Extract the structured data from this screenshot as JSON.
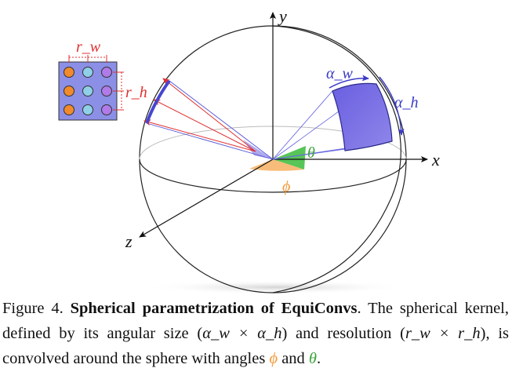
{
  "figure": {
    "labels": {
      "y_axis": "y",
      "x_axis": "x",
      "z_axis": "z",
      "kernel_width": "r_w",
      "kernel_height": "r_h",
      "alpha_w": "α_w",
      "alpha_h": "α_h",
      "theta": "θ",
      "phi": "ϕ"
    },
    "kernel_grid": [
      [
        "#f08a2c",
        "#8fd0e8",
        "#b07ae8"
      ],
      [
        "#f08a2c",
        "#8fd0e8",
        "#b07ae8"
      ],
      [
        "#f08a2c",
        "#8fd0e8",
        "#b07ae8"
      ]
    ],
    "colors": {
      "grid_bg": "#8c8fe6",
      "patch": "#7b6fe0",
      "ray_red": "#e03030",
      "ray_blue": "#5050d8",
      "theta_fill": "#4ec24e",
      "phi_fill": "#f6b56a"
    }
  },
  "caption": {
    "label": "Figure 4.",
    "title": "Spherical parametrization of EquiConvs",
    "text_1": ". The spherical kernel, defined by its angular size (",
    "math_alpha": "α_w × α_h",
    "text_2": ") and resolution (",
    "math_r": "r_w × r_h",
    "text_3": "), is convolved around the sphere with angles ",
    "phi": "ϕ",
    "text_4": " and ",
    "theta": "θ",
    "text_5": "."
  }
}
